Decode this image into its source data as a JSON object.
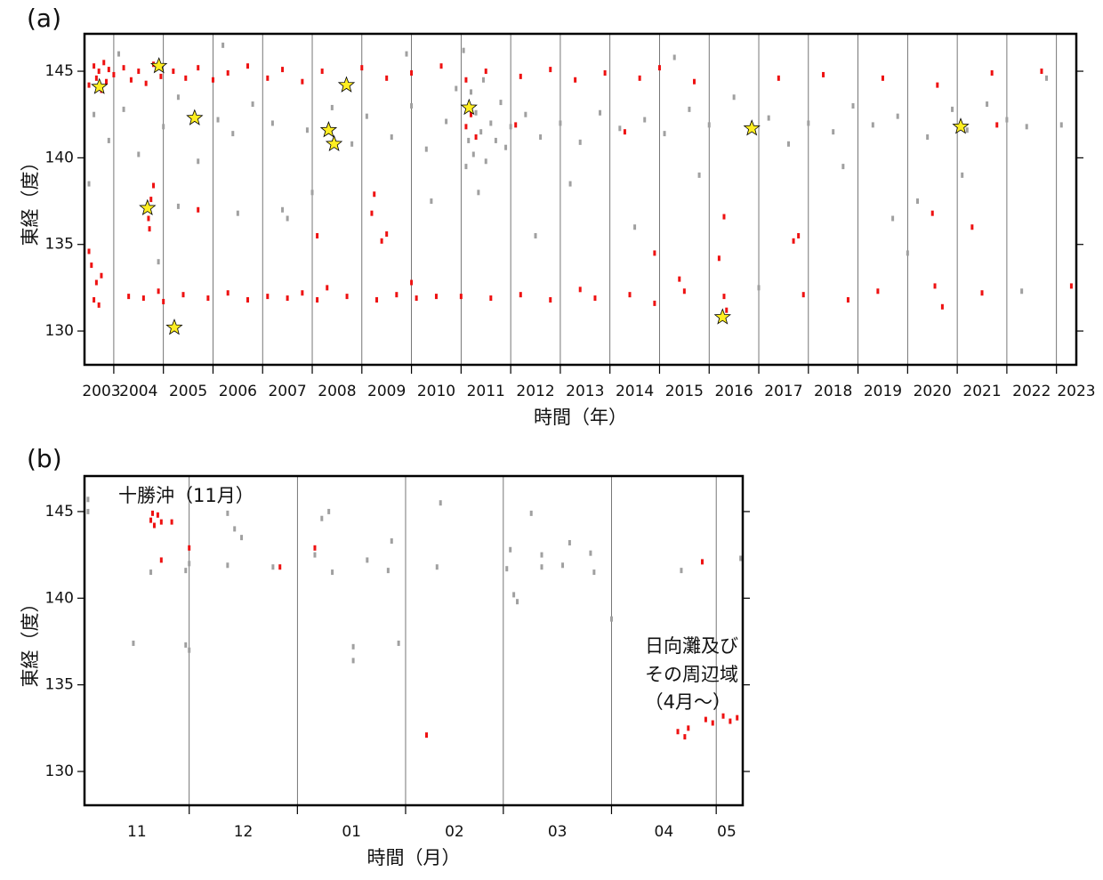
{
  "chart_data": [
    {
      "type": "scatter",
      "panel_label": "(a)",
      "xlabel": "時間（年）",
      "ylabel": "東経（度）",
      "xlim": [
        2003.41,
        2023.4
      ],
      "ylim": [
        128.05,
        147.16
      ],
      "xticks": [
        {
          "value": 2003.75,
          "label": "2003"
        },
        {
          "value": 2004.5,
          "label": "2004"
        },
        {
          "value": 2005.5,
          "label": "2005"
        },
        {
          "value": 2006.5,
          "label": "2006"
        },
        {
          "value": 2007.5,
          "label": "2007"
        },
        {
          "value": 2008.5,
          "label": "2008"
        },
        {
          "value": 2009.5,
          "label": "2009"
        },
        {
          "value": 2010.5,
          "label": "2010"
        },
        {
          "value": 2011.5,
          "label": "2011"
        },
        {
          "value": 2012.5,
          "label": "2012"
        },
        {
          "value": 2013.5,
          "label": "2013"
        },
        {
          "value": 2014.5,
          "label": "2014"
        },
        {
          "value": 2015.5,
          "label": "2015"
        },
        {
          "value": 2016.5,
          "label": "2016"
        },
        {
          "value": 2017.5,
          "label": "2017"
        },
        {
          "value": 2018.5,
          "label": "2018"
        },
        {
          "value": 2019.5,
          "label": "2019"
        },
        {
          "value": 2020.5,
          "label": "2020"
        },
        {
          "value": 2021.5,
          "label": "2021"
        },
        {
          "value": 2022.5,
          "label": "2022"
        },
        {
          "value": 2023.4,
          "label": "2023"
        }
      ],
      "grid_x": [
        2004,
        2005,
        2006,
        2007,
        2008,
        2009,
        2010,
        2011,
        2012,
        2013,
        2014,
        2015,
        2016,
        2017,
        2018,
        2019,
        2020,
        2021,
        2022,
        2023
      ],
      "yticks": [
        130,
        135,
        140,
        145
      ],
      "series": [
        {
          "color": "#a0a0a0",
          "marker": "dot",
          "x": [
            2003.6,
            2003.9,
            2004.2,
            2004.5,
            2005.0,
            2005.3,
            2005.7,
            2006.1,
            2006.4,
            2006.8,
            2007.2,
            2007.5,
            2007.9,
            2008.4,
            2008.8,
            2009.1,
            2009.6,
            2010.0,
            2010.3,
            2010.7,
            2010.9,
            2011.05,
            2011.1,
            2011.15,
            2011.2,
            2011.25,
            2011.3,
            2011.35,
            2011.4,
            2011.45,
            2011.5,
            2011.6,
            2011.7,
            2011.8,
            2011.9,
            2012.0,
            2012.3,
            2012.6,
            2013.0,
            2013.4,
            2013.8,
            2014.2,
            2014.7,
            2015.1,
            2015.6,
            2016.0,
            2016.5,
            2016.9,
            2017.2,
            2017.6,
            2018.0,
            2018.5,
            2018.9,
            2019.3,
            2019.8,
            2020.2,
            2020.4,
            2020.9,
            2021.2,
            2021.6,
            2022.0,
            2022.4,
            2022.8,
            2023.1,
            2003.5,
            2004.1,
            2004.9,
            2005.3,
            2006.5,
            2007.4,
            2008.0,
            2010.4,
            2012.5,
            2013.2,
            2014.5,
            2015.8,
            2017.0,
            2018.7,
            2019.7,
            2020.0,
            2021.1,
            2022.3,
            2009.9,
            2006.2,
            2015.3
          ],
          "values": [
            142.5,
            141.0,
            142.8,
            140.2,
            141.8,
            143.5,
            139.8,
            142.2,
            141.4,
            143.1,
            142.0,
            136.5,
            141.6,
            142.9,
            140.8,
            142.4,
            141.2,
            143.0,
            140.5,
            142.1,
            144.0,
            146.2,
            139.5,
            141.0,
            143.8,
            140.2,
            142.6,
            138.0,
            141.5,
            144.5,
            139.8,
            142.0,
            141.0,
            143.2,
            140.6,
            141.8,
            142.5,
            141.2,
            142.0,
            140.9,
            142.6,
            141.7,
            142.2,
            141.4,
            142.8,
            141.9,
            143.5,
            141.6,
            142.3,
            140.8,
            142.0,
            141.5,
            143.0,
            141.9,
            142.4,
            137.5,
            141.2,
            142.8,
            141.6,
            143.1,
            142.2,
            141.8,
            144.6,
            141.9,
            138.5,
            146.0,
            134.0,
            137.2,
            136.8,
            137.0,
            138.0,
            137.5,
            135.5,
            138.5,
            136.0,
            139.0,
            132.5,
            139.5,
            136.5,
            134.5,
            139.0,
            132.3,
            146.0,
            146.5,
            145.8
          ]
        },
        {
          "color": "#ee1111",
          "marker": "dot",
          "x": [
            2003.5,
            2003.6,
            2003.65,
            2003.7,
            2003.75,
            2003.8,
            2003.85,
            2003.9,
            2004.0,
            2004.2,
            2004.35,
            2004.5,
            2004.65,
            2004.8,
            2004.95,
            2005.2,
            2005.45,
            2005.7,
            2006.0,
            2006.3,
            2006.7,
            2007.1,
            2007.4,
            2007.8,
            2008.2,
            2008.7,
            2009.0,
            2009.5,
            2010.0,
            2010.6,
            2011.1,
            2011.5,
            2012.2,
            2012.8,
            2013.3,
            2013.9,
            2014.6,
            2015.0,
            2015.7,
            2017.4,
            2018.3,
            2019.5,
            2020.6,
            2021.7,
            2022.7,
            2003.6,
            2003.65,
            2003.7,
            2003.75,
            2004.3,
            2004.6,
            2004.9,
            2005.0,
            2005.4,
            2005.9,
            2006.3,
            2006.7,
            2007.1,
            2007.5,
            2007.8,
            2008.1,
            2008.3,
            2008.7,
            2009.3,
            2009.7,
            2010.0,
            2010.1,
            2010.5,
            2011.0,
            2011.6,
            2012.2,
            2012.8,
            2013.4,
            2013.7,
            2014.4,
            2014.9,
            2015.4,
            2015.5,
            2016.3,
            2016.35,
            2017.9,
            2018.8,
            2019.4,
            2020.7,
            2021.5,
            2023.3,
            2003.5,
            2003.55,
            2004.7,
            2004.75,
            2004.8,
            2004.72,
            2005.7,
            2008.1,
            2009.2,
            2009.25,
            2009.4,
            2009.5,
            2011.1,
            2011.2,
            2011.3,
            2016.3,
            2016.2,
            2017.7,
            2017.8,
            2020.5,
            2020.55,
            2021.3,
            2021.8,
            2014.9,
            2012.1,
            2014.3
          ],
          "values": [
            144.2,
            145.3,
            144.6,
            145.0,
            143.9,
            145.5,
            144.4,
            145.1,
            144.8,
            145.2,
            144.5,
            145.0,
            144.3,
            145.4,
            144.7,
            145.0,
            144.6,
            145.2,
            144.5,
            144.9,
            145.3,
            144.6,
            145.1,
            144.4,
            145.0,
            144.3,
            145.2,
            144.6,
            144.9,
            145.3,
            144.5,
            145.0,
            144.7,
            145.1,
            144.5,
            144.9,
            144.6,
            145.2,
            144.4,
            144.6,
            144.8,
            144.6,
            144.2,
            144.9,
            145.0,
            131.8,
            132.8,
            131.5,
            133.2,
            132.0,
            131.9,
            132.3,
            131.7,
            132.1,
            131.9,
            132.2,
            131.8,
            132.0,
            131.9,
            132.2,
            131.8,
            132.5,
            132.0,
            131.8,
            132.1,
            132.8,
            131.9,
            132.0,
            132.0,
            131.9,
            132.1,
            131.8,
            132.4,
            131.9,
            132.1,
            131.6,
            133.0,
            132.3,
            132.0,
            131.2,
            132.1,
            131.8,
            132.3,
            131.4,
            132.2,
            132.6,
            134.6,
            133.8,
            136.5,
            137.6,
            138.4,
            135.9,
            137.0,
            135.5,
            136.8,
            137.9,
            135.2,
            135.6,
            141.8,
            142.5,
            141.2,
            136.6,
            134.2,
            135.2,
            135.5,
            136.8,
            132.6,
            136.0,
            141.9,
            134.5,
            141.9,
            141.5
          ]
        },
        {
          "color": "#ffee22",
          "marker": "star",
          "x": [
            2003.71,
            2004.68,
            2004.91,
            2005.22,
            2005.63,
            2008.33,
            2008.44,
            2008.69,
            2011.16,
            2016.27,
            2016.86,
            2021.07
          ],
          "values": [
            144.1,
            137.1,
            145.3,
            130.2,
            142.3,
            141.6,
            140.8,
            144.2,
            142.9,
            130.8,
            141.7,
            141.8
          ]
        }
      ]
    },
    {
      "type": "scatter",
      "panel_label": "(b)",
      "xlabel": "時間（月）",
      "ylabel": "東経（度）",
      "xlim": [
        0,
        188.6
      ],
      "ylim": [
        128.05,
        147.05
      ],
      "xticks": [
        {
          "value": 15,
          "label": "11"
        },
        {
          "value": 45.5,
          "label": "12"
        },
        {
          "value": 76.5,
          "label": "01"
        },
        {
          "value": 106,
          "label": "02"
        },
        {
          "value": 135.5,
          "label": "03"
        },
        {
          "value": 166,
          "label": "04"
        },
        {
          "value": 184,
          "label": "05"
        }
      ],
      "grid_x": [
        30,
        61,
        92,
        120,
        151,
        181
      ],
      "yticks": [
        130,
        135,
        140,
        145
      ],
      "annotations": [
        "十勝沖（11月）",
        "日向灘及び",
        "その周辺域",
        "（4月～）"
      ],
      "series": [
        {
          "color": "#a0a0a0",
          "marker": "dot",
          "x": [
            1,
            1,
            14,
            19,
            29,
            30,
            30,
            29,
            41,
            43,
            45,
            41,
            54,
            66,
            68,
            70,
            71,
            81,
            87,
            88,
            90,
            77,
            77,
            102,
            101,
            121,
            122,
            123,
            124,
            128,
            131,
            131,
            137,
            139,
            145,
            146,
            151,
            171,
            188
          ],
          "values": [
            145.7,
            145.0,
            137.4,
            141.5,
            137.3,
            137.0,
            142.0,
            141.6,
            144.9,
            144.0,
            143.5,
            141.9,
            141.8,
            142.5,
            144.6,
            145.0,
            141.5,
            142.2,
            141.6,
            143.3,
            137.4,
            136.4,
            137.2,
            145.5,
            141.8,
            141.7,
            142.8,
            140.2,
            139.8,
            144.9,
            141.8,
            142.5,
            141.9,
            143.2,
            142.6,
            141.5,
            138.8,
            141.6,
            142.3
          ]
        },
        {
          "color": "#ee1111",
          "marker": "dot",
          "x": [
            19,
            20,
            21,
            19.5,
            22,
            25,
            22,
            30,
            56,
            66,
            98,
            170,
            172,
            173,
            177,
            178,
            180,
            183,
            185,
            187
          ],
          "values": [
            144.5,
            144.2,
            144.8,
            144.9,
            144.4,
            144.4,
            142.2,
            142.9,
            141.8,
            142.9,
            132.1,
            132.3,
            132.0,
            132.5,
            142.1,
            133.0,
            132.8,
            133.2,
            132.9,
            133.1
          ]
        }
      ]
    }
  ]
}
